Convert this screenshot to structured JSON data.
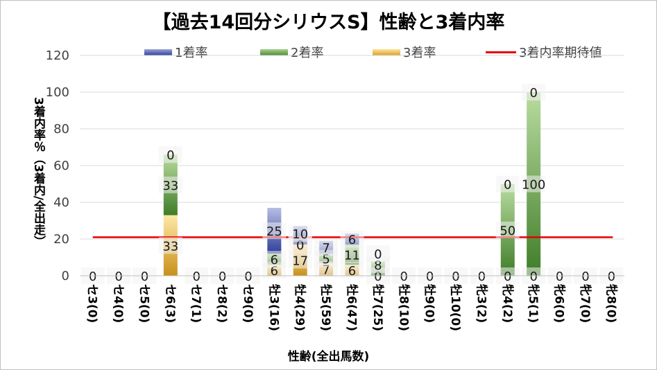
{
  "title": "【過去14回分シリウスS】性齢と3着内率",
  "xlabel": "性齢(全出馬数)",
  "ylabel": "3着内率％（3着内/全出走）",
  "colors": {
    "first": "#2f3f99",
    "second": "#4e8a34",
    "third": "#d9a028",
    "line": "#e60000"
  },
  "chart_data": {
    "type": "bar",
    "stacked": true,
    "title": "【過去14回分シリウスS】性齢と3着内率",
    "xlabel": "性齢(全出馬数)",
    "ylabel": "3着内率％（3着内/全出走）",
    "ylim": [
      0,
      120
    ],
    "yticks": [
      0,
      20,
      40,
      60,
      80,
      100,
      120
    ],
    "grid": true,
    "legend_position": "top",
    "categories": [
      "セ3(0)",
      "セ4(0)",
      "セ5(0)",
      "セ6(3)",
      "セ7(1)",
      "セ8(2)",
      "セ9(0)",
      "牡3(16)",
      "牡4(29)",
      "牡5(59)",
      "牡6(47)",
      "牡7(25)",
      "牡8(10)",
      "牡9(0)",
      "牡10(0)",
      "牝3(2)",
      "牝4(2)",
      "牝5(1)",
      "牝6(0)",
      "牝7(0)",
      "牝8(0)"
    ],
    "series": [
      {
        "name": "1着率",
        "values": [
          0,
          0,
          0,
          0,
          0,
          0,
          0,
          25,
          10,
          7,
          6,
          0,
          0,
          0,
          0,
          0,
          0,
          0,
          0,
          0,
          0
        ]
      },
      {
        "name": "2着率",
        "values": [
          0,
          0,
          0,
          33,
          0,
          0,
          0,
          6,
          0,
          5,
          11,
          8,
          0,
          0,
          0,
          0,
          50,
          100,
          0,
          0,
          0
        ]
      },
      {
        "name": "3着率",
        "values": [
          0,
          0,
          0,
          33,
          0,
          0,
          0,
          6,
          17,
          7,
          6,
          0,
          0,
          0,
          0,
          0,
          0,
          0,
          0,
          0,
          0
        ]
      }
    ],
    "reference_line": {
      "name": "3着内率期待値",
      "value": 21
    },
    "data_labels": [
      {
        "category": "セ3(0)",
        "labels": [
          "0"
        ]
      },
      {
        "category": "セ4(0)",
        "labels": [
          "0"
        ]
      },
      {
        "category": "セ5(0)",
        "labels": [
          "0"
        ]
      },
      {
        "category": "セ6(3)",
        "labels": [
          "33",
          "33",
          "0"
        ]
      },
      {
        "category": "セ7(1)",
        "labels": [
          "0"
        ]
      },
      {
        "category": "セ8(2)",
        "labels": [
          "0"
        ]
      },
      {
        "category": "セ9(0)",
        "labels": [
          "0"
        ]
      },
      {
        "category": "牡3(16)",
        "labels": [
          "6",
          "6",
          "25"
        ]
      },
      {
        "category": "牡4(29)",
        "labels": [
          "17",
          "0",
          "10"
        ]
      },
      {
        "category": "牡5(59)",
        "labels": [
          "7",
          "5",
          "7"
        ]
      },
      {
        "category": "牡6(47)",
        "labels": [
          "6",
          "11",
          "6"
        ]
      },
      {
        "category": "牡7(25)",
        "labels": [
          "0",
          "8",
          "0"
        ]
      },
      {
        "category": "牡8(10)",
        "labels": [
          "0"
        ]
      },
      {
        "category": "牡9(0)",
        "labels": [
          "0"
        ]
      },
      {
        "category": "牡10(0)",
        "labels": [
          "0"
        ]
      },
      {
        "category": "牝3(2)",
        "labels": [
          "0"
        ]
      },
      {
        "category": "牝4(2)",
        "labels": [
          "0",
          "50",
          "0"
        ]
      },
      {
        "category": "牝5(1)",
        "labels": [
          "0",
          "100",
          "0"
        ]
      },
      {
        "category": "牝6(0)",
        "labels": [
          "0"
        ]
      },
      {
        "category": "牝7(0)",
        "labels": [
          "0"
        ]
      },
      {
        "category": "牝8(0)",
        "labels": [
          "0"
        ]
      }
    ]
  }
}
